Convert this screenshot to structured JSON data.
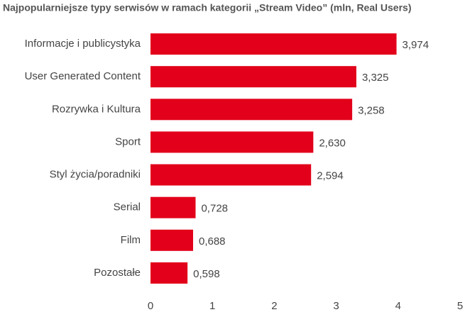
{
  "chart_data": {
    "type": "hbar",
    "title": "Najpopularniejsze typy serwisów w ramach kategorii „Stream Video” (mln, Real Users)",
    "categories": [
      "Informacje i publicystyka",
      "User Generated Content",
      "Rozrywka i Kultura",
      "Sport",
      "Styl życia/poradniki",
      "Serial",
      "Film",
      "Pozostałe"
    ],
    "values": [
      3.974,
      3.325,
      3.258,
      2.63,
      2.594,
      0.728,
      0.688,
      0.598
    ],
    "value_labels": [
      "3,974",
      "3,325",
      "3,258",
      "2,630",
      "2,594",
      "0,728",
      "0,688",
      "0,598"
    ],
    "color": "#e2001a",
    "xlim": [
      0,
      5
    ],
    "xticks": [
      0,
      1,
      2,
      3,
      4,
      5
    ],
    "grid": false
  }
}
